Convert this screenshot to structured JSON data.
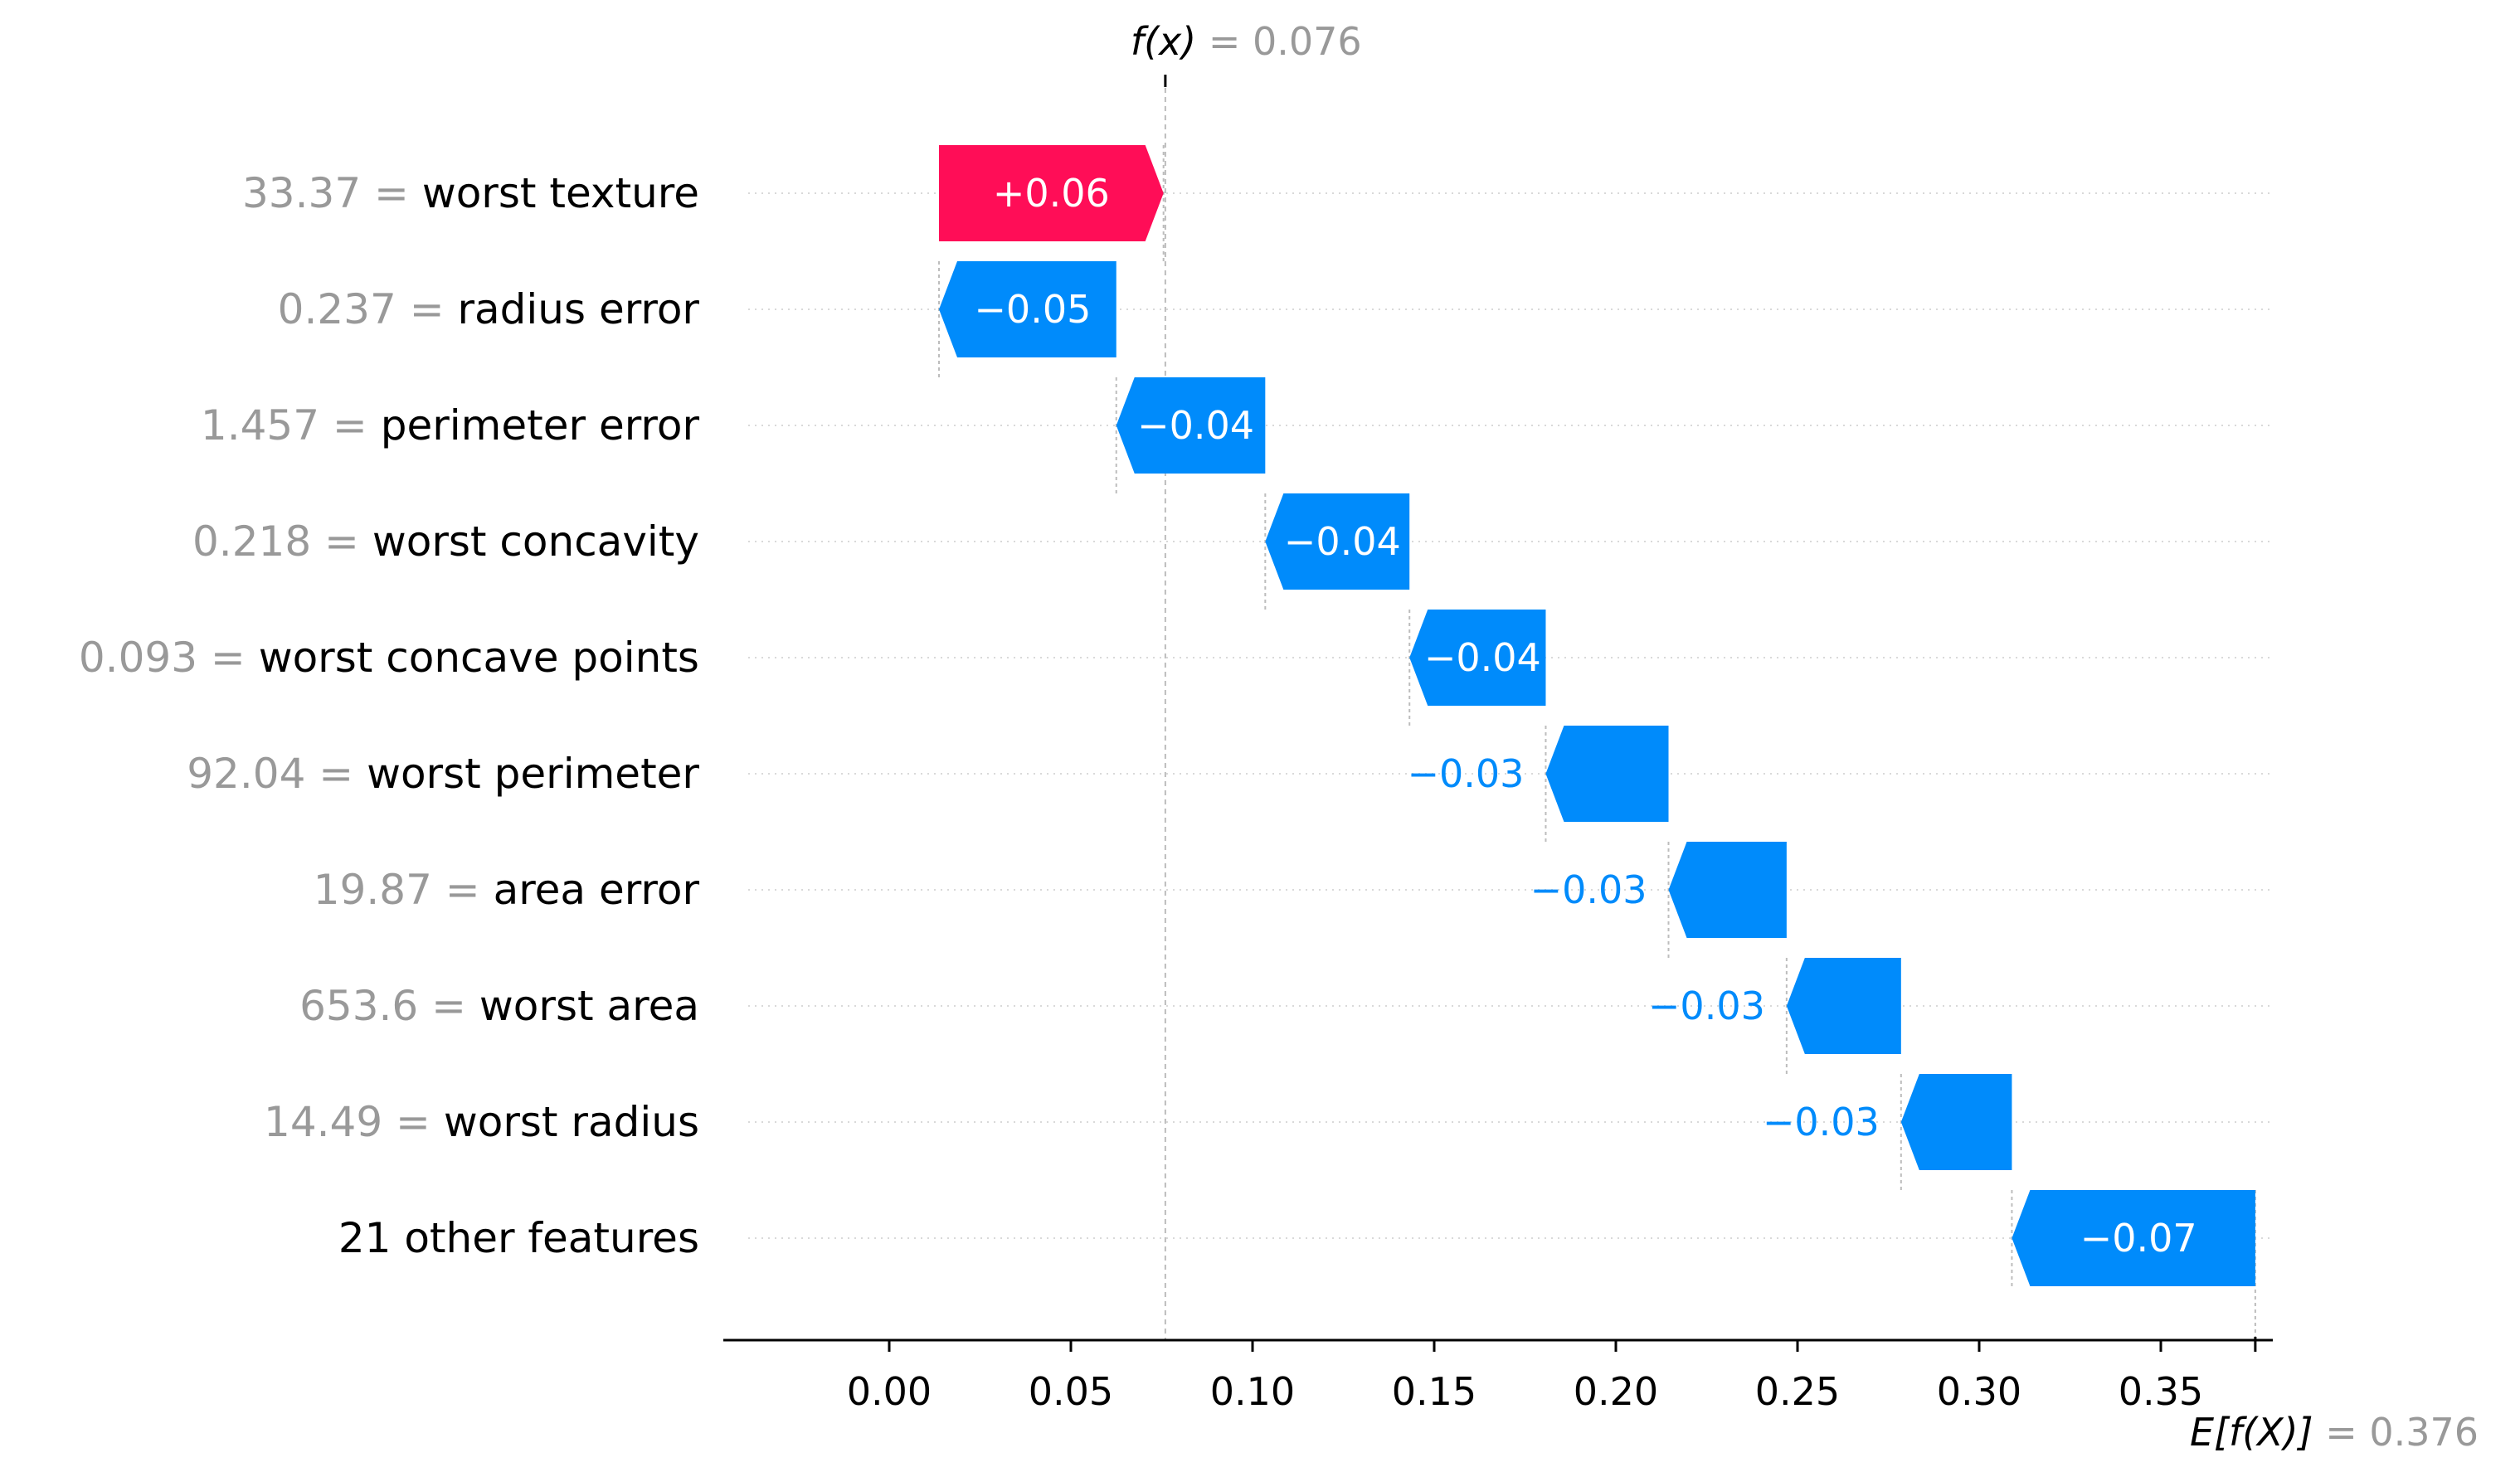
{
  "chart_data": {
    "type": "waterfall",
    "rows": [
      {
        "feature_value": "33.37",
        "feature": "worst texture",
        "start": 0.0137,
        "end": 0.0755,
        "label": "+0.06",
        "sign": "positive"
      },
      {
        "feature_value": "0.237",
        "feature": "radius error",
        "start": 0.0625,
        "end": 0.0137,
        "label": "−0.05",
        "sign": "negative"
      },
      {
        "feature_value": "1.457",
        "feature": "perimeter error",
        "start": 0.1035,
        "end": 0.0625,
        "label": "−0.04",
        "sign": "negative"
      },
      {
        "feature_value": "0.218",
        "feature": "worst concavity",
        "start": 0.1432,
        "end": 0.1035,
        "label": "−0.04",
        "sign": "negative"
      },
      {
        "feature_value": "0.093",
        "feature": "worst concave points",
        "start": 0.1807,
        "end": 0.1432,
        "label": "−0.04",
        "sign": "negative"
      },
      {
        "feature_value": "92.04",
        "feature": "worst perimeter",
        "start": 0.2145,
        "end": 0.1807,
        "label": "−0.03",
        "sign": "negative"
      },
      {
        "feature_value": "19.87",
        "feature": "area error",
        "start": 0.247,
        "end": 0.2145,
        "label": "−0.03",
        "sign": "negative"
      },
      {
        "feature_value": "653.6",
        "feature": "worst area",
        "start": 0.2785,
        "end": 0.247,
        "label": "−0.03",
        "sign": "negative"
      },
      {
        "feature_value": "14.49",
        "feature": "worst radius",
        "start": 0.309,
        "end": 0.2785,
        "label": "−0.03",
        "sign": "negative"
      },
      {
        "feature_value": "",
        "feature": "21 other features",
        "start": 0.376,
        "end": 0.309,
        "label": "−0.07",
        "sign": "negative"
      }
    ],
    "x_ticks": [
      0.0,
      0.05,
      0.1,
      0.15,
      0.2,
      0.25,
      0.3,
      0.35
    ],
    "x_tick_labels": [
      "0.00",
      "0.05",
      "0.10",
      "0.15",
      "0.20",
      "0.25",
      "0.30",
      "0.35"
    ],
    "xlim": [
      -0.045,
      0.385
    ],
    "fx": {
      "name": "f(x)",
      "value_text": "= 0.076",
      "value": 0.076
    },
    "efx": {
      "name": "E[f(X)]",
      "value_text": "= 0.376",
      "value": 0.376
    },
    "colors": {
      "positive": "#ff0d57",
      "negative": "#008bfb",
      "feature_value": "#999999",
      "feature_name": "#000000"
    }
  }
}
